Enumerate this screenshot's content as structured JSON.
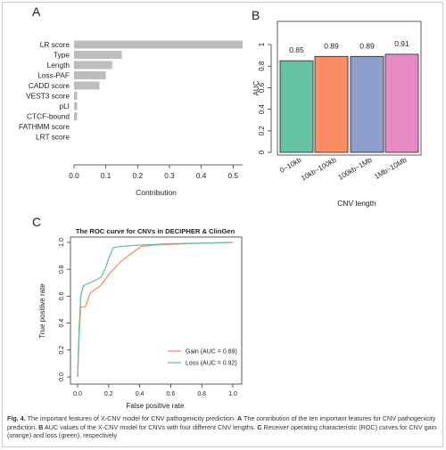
{
  "panels": {
    "a": "A",
    "b": "B",
    "c": "C"
  },
  "chart_data": [
    {
      "type": "bar",
      "orientation": "horizontal",
      "categories": [
        "LR score",
        "Type",
        "Length",
        "Loss-PAF",
        "CADD score",
        "VEST3 score",
        "pLI",
        "CTCF-bound",
        "FATHMM score",
        "LRT score"
      ],
      "values": [
        0.53,
        0.15,
        0.12,
        0.1,
        0.08,
        0.01,
        0.01,
        0.01,
        0.0,
        0.0
      ],
      "xlabel": "Contribution",
      "xlim": [
        0,
        0.53
      ],
      "xticks": [
        "0.0",
        "0.1",
        "0.2",
        "0.3",
        "0.4",
        "0.5"
      ],
      "color": "#bdbdbd"
    },
    {
      "type": "bar",
      "categories": [
        "0~10kb",
        "10kb~100kb",
        "100kb~1Mb",
        "1Mb~10Mb"
      ],
      "values": [
        0.85,
        0.89,
        0.89,
        0.91
      ],
      "value_labels": [
        "0.85",
        "0.89",
        "0.89",
        "0.91"
      ],
      "colors": [
        "#66c2a5",
        "#fc8d62",
        "#8da0cb",
        "#e78ac3"
      ],
      "xlabel": "CNV length",
      "ylabel": "AUC",
      "ylim": [
        0,
        1
      ],
      "yticks": [
        "0",
        "0.2",
        "0.4",
        "0.6",
        "0.8",
        "1"
      ]
    },
    {
      "type": "line",
      "title": "The ROC curve for CNVs in DECIPHER & ClinGen",
      "xlabel": "False positive rate",
      "ylabel": "True positive rate",
      "xlim": [
        0,
        1
      ],
      "ylim": [
        0,
        1
      ],
      "ticks": [
        "0.0",
        "0.2",
        "0.4",
        "0.6",
        "0.8",
        "1.0"
      ],
      "series": [
        {
          "name": "Gain (AUC = 0.89)",
          "color": "#fc8d62",
          "x": [
            0,
            0.01,
            0.02,
            0.04,
            0.05,
            0.08,
            0.1,
            0.15,
            0.2,
            0.28,
            0.35,
            0.41,
            0.5,
            0.7,
            1.0
          ],
          "y": [
            0,
            0.3,
            0.52,
            0.52,
            0.52,
            0.62,
            0.64,
            0.68,
            0.76,
            0.86,
            0.92,
            0.97,
            0.98,
            0.99,
            1.0
          ]
        },
        {
          "name": "Loss (AUC = 0.92)",
          "color": "#66c2a5",
          "x": [
            0,
            0.01,
            0.02,
            0.03,
            0.04,
            0.06,
            0.1,
            0.15,
            0.18,
            0.2,
            0.23,
            0.28,
            0.4,
            0.6,
            1.0
          ],
          "y": [
            0,
            0.35,
            0.6,
            0.65,
            0.68,
            0.69,
            0.71,
            0.74,
            0.81,
            0.88,
            0.96,
            0.97,
            0.98,
            0.99,
            1.0
          ]
        }
      ],
      "legend": "bottom-right"
    }
  ],
  "caption": {
    "fig": "Fig. 4.",
    "s1": " The important features of X-CNV model for CNV pathogenicity prediction. ",
    "a": "A",
    "s2": " The contribution of the ten important features for CNV pathogenicity prediction. ",
    "b": "B",
    "s3": " AUC values of the X-CNV model for CNVs with four different CNV lengths. ",
    "c": "C",
    "s4": " Receiver operating characteristic (ROC) curves for CNV gain (orange) and loss (green), respectively"
  }
}
